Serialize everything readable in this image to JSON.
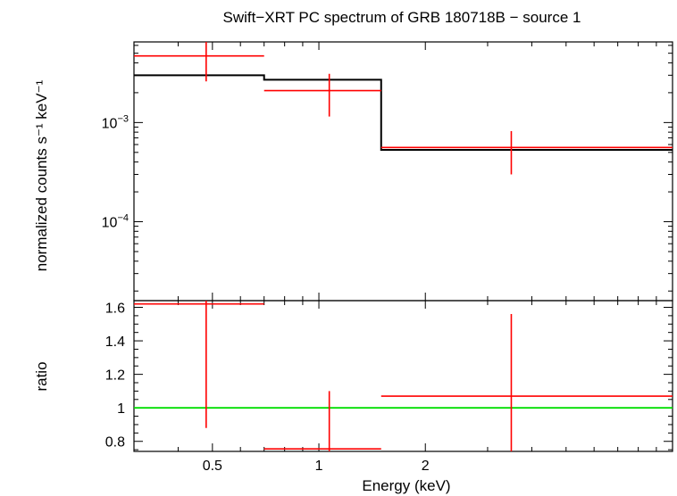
{
  "chart_data": [
    {
      "type": "scatter",
      "panel": "spectrum",
      "title": "Swift−XRT PC spectrum of GRB 180718B − source 1",
      "ylabel": "normalized counts s⁻¹ keV⁻¹",
      "yscale": "log",
      "ylim": [
        1.6e-05,
        0.0065
      ],
      "xscale": "log",
      "xlim": [
        0.3,
        10
      ],
      "yticks": [
        {
          "value": 0.001,
          "base": "10",
          "exp": "−3"
        },
        {
          "value": 0.0001,
          "base": "10",
          "exp": "−4"
        }
      ],
      "series": [
        {
          "role": "data",
          "color": "#ff0000",
          "points": [
            {
              "xlo": 0.3,
              "xhi": 0.7,
              "x": 0.48,
              "y": 0.0047,
              "ylo": 0.0026,
              "yhi": 0.0068
            },
            {
              "xlo": 0.7,
              "xhi": 1.5,
              "x": 1.07,
              "y": 0.0021,
              "ylo": 0.00115,
              "yhi": 0.0031
            },
            {
              "xlo": 1.5,
              "xhi": 10,
              "x": 3.5,
              "y": 0.00056,
              "ylo": 0.0003,
              "yhi": 0.00082
            }
          ]
        },
        {
          "role": "model",
          "color": "#000000",
          "steps": [
            {
              "xlo": 0.3,
              "xhi": 0.7,
              "y": 0.003
            },
            {
              "xlo": 0.7,
              "xhi": 1.5,
              "y": 0.0027
            },
            {
              "xlo": 1.5,
              "xhi": 10,
              "y": 0.00053
            }
          ]
        }
      ]
    },
    {
      "type": "scatter",
      "panel": "ratio",
      "xlabel": "Energy (keV)",
      "ylabel": "ratio",
      "xscale": "log",
      "xlim": [
        0.3,
        10
      ],
      "ylim": [
        0.74,
        1.64
      ],
      "xticks": [
        0.5,
        1,
        2
      ],
      "xtick_labels": [
        "0.5",
        "1",
        "2"
      ],
      "yticks": [
        0.8,
        1,
        1.2,
        1.4,
        1.6
      ],
      "ytick_labels": [
        "0.8",
        "1",
        "1.2",
        "1.4",
        "1.6"
      ],
      "reference_line": {
        "y": 1,
        "color": "#00dd00"
      },
      "series": [
        {
          "role": "ratio",
          "color": "#ff0000",
          "points": [
            {
              "xlo": 0.3,
              "xhi": 0.7,
              "x": 0.48,
              "y": 1.62,
              "ylo": 0.88,
              "yhi": 1.64
            },
            {
              "xlo": 0.7,
              "xhi": 1.5,
              "x": 1.07,
              "y": 0.755,
              "ylo": 0.74,
              "yhi": 1.1
            },
            {
              "xlo": 1.5,
              "xhi": 10,
              "x": 3.5,
              "y": 1.07,
              "ylo": 0.74,
              "yhi": 1.56
            }
          ]
        }
      ]
    }
  ]
}
